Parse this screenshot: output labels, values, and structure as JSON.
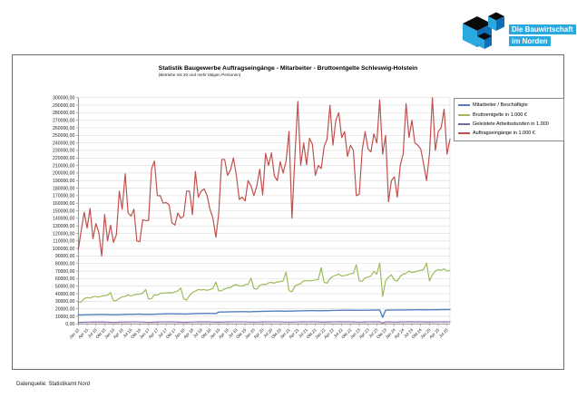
{
  "logo": {
    "line1": "Die Bauwirtschaft",
    "line2": "im Norden",
    "text_bg": "#29a9e0",
    "cube_top": "#0a0a0a",
    "cube_left": "#29a9e0",
    "cube_right": "#0e6fb8"
  },
  "footer": {
    "source": "Datenquelle: Statistikamt Nord"
  },
  "chart_data": {
    "type": "line",
    "title": "Statistik Baugewerbe Auftragseingänge - Mitarbeiter - Bruttoentgelte Schleswig-Holstein",
    "subtitle": "(Betriebe mit 20 und mehr tätigen Personen)",
    "xlabel": "",
    "ylabel": "",
    "ylim": [
      0,
      300000
    ],
    "ytick_step": 10000,
    "ytick_suffix": ",00",
    "grid": "horizontal",
    "legend_position": "right-top",
    "x_unit": "month",
    "x_range": "Jan 2015 – Aug 2025",
    "tick_every": 3,
    "tick_labels": [
      "Jan 15",
      "Apr 15",
      "Jul 15",
      "Okt 15",
      "Jan 16",
      "Apr 16",
      "Jul 16",
      "Okt 16",
      "Jan 17",
      "Apr 17",
      "Jul 17",
      "Okt 17",
      "Jan 18",
      "Apr 18",
      "Jul 18",
      "Okt 18",
      "Jan 19",
      "Apr 19",
      "Jul 19",
      "Okt 19",
      "Jan 20",
      "Apr 20",
      "Jul 20",
      "Okt 20",
      "Jan 21",
      "Apr 21",
      "Jul 21",
      "Okt 21",
      "Jan 22",
      "Apr 22",
      "Jul 22",
      "Okt 22",
      "Jan 23",
      "Apr 23",
      "Jul 23",
      "Okt 23",
      "Jan 24",
      "Apr 24",
      "Jul 24",
      "Okt 24",
      "Jan 25",
      "Apr 25",
      "Jul 25"
    ],
    "series": [
      {
        "id": "mitarbeiter",
        "name": "Mitarbeiter / Beschäftigte",
        "color": "#4f81bd",
        "values": [
          12000,
          11900,
          12000,
          12100,
          12200,
          12300,
          12300,
          12400,
          12400,
          12400,
          12300,
          12200,
          12200,
          12100,
          12300,
          12500,
          12600,
          12700,
          12800,
          12800,
          12900,
          12900,
          12800,
          12700,
          12600,
          12600,
          12800,
          13000,
          13100,
          13200,
          13300,
          13300,
          13400,
          13400,
          13300,
          13200,
          13100,
          13100,
          13300,
          13500,
          13600,
          13700,
          13800,
          13800,
          13900,
          13900,
          13800,
          13700,
          15600,
          15700,
          15800,
          15900,
          16000,
          16100,
          16100,
          16200,
          16200,
          16200,
          16100,
          16000,
          16300,
          16400,
          16500,
          16600,
          16700,
          16800,
          16800,
          16900,
          16900,
          16900,
          16800,
          16800,
          16900,
          17000,
          17100,
          17200,
          17300,
          17400,
          17400,
          17500,
          17500,
          17500,
          17400,
          17400,
          17500,
          17600,
          17700,
          17800,
          17900,
          18000,
          18000,
          18100,
          18100,
          18100,
          18000,
          18000,
          18000,
          18100,
          18200,
          18200,
          18300,
          18300,
          18300,
          18400,
          8600,
          18200,
          18300,
          18300,
          18300,
          18400,
          18400,
          18500,
          18500,
          18600,
          18600,
          18600,
          18700,
          18700,
          18600,
          18600,
          18600,
          18700,
          18800,
          18800,
          18900,
          18900,
          18900,
          19000
        ]
      },
      {
        "id": "bruttoentgelte",
        "name": "Bruttoentgelte in 1.000 €",
        "color": "#9bbb59",
        "values": [
          28500,
          29000,
          33500,
          35000,
          34000,
          36000,
          36500,
          35500,
          37000,
          37500,
          38000,
          41500,
          30500,
          31000,
          33500,
          36000,
          36500,
          38500,
          37000,
          38500,
          39000,
          39500,
          41000,
          45500,
          33000,
          33500,
          38500,
          38000,
          40500,
          41000,
          41000,
          41500,
          41000,
          42500,
          43500,
          47500,
          33500,
          31500,
          37500,
          41500,
          43500,
          45500,
          45000,
          45500,
          44500,
          45500,
          47000,
          55500,
          43500,
          44000,
          46500,
          47500,
          48000,
          51000,
          52000,
          50500,
          50000,
          52000,
          52500,
          60500,
          47000,
          46000,
          51000,
          52500,
          52000,
          54500,
          55000,
          54000,
          55500,
          56000,
          57000,
          68500,
          44000,
          42500,
          50000,
          52000,
          53500,
          57000,
          57500,
          57000,
          57500,
          58000,
          59000,
          74500,
          55000,
          54000,
          60000,
          63000,
          64500,
          66000,
          63500,
          64000,
          65000,
          66500,
          67000,
          78500,
          57000,
          56500,
          61000,
          62000,
          63500,
          69500,
          66000,
          80500,
          36500,
          57000,
          62000,
          65000,
          58000,
          57000,
          63000,
          66000,
          67000,
          70000,
          68000,
          69000,
          70000,
          71000,
          72000,
          80500,
          57000,
          65000,
          70000,
          72000,
          71000,
          73000,
          70000,
          71000
        ]
      },
      {
        "id": "arbeitsstunden",
        "name": "Geleistete Arbeitsstunden in 1.000",
        "color": "#8064a2",
        "values": [
          2000,
          2050,
          2250,
          2350,
          2400,
          2450,
          2500,
          2450,
          2500,
          2450,
          2350,
          2150,
          2050,
          2100,
          2300,
          2400,
          2450,
          2500,
          2550,
          2500,
          2550,
          2500,
          2400,
          2200,
          2100,
          2100,
          2350,
          2450,
          2500,
          2550,
          2550,
          2550,
          2600,
          2550,
          2450,
          2250,
          2150,
          2150,
          2400,
          2500,
          2550,
          2600,
          2600,
          2600,
          2650,
          2600,
          2500,
          2300,
          2300,
          2350,
          2500,
          2600,
          2650,
          2700,
          2700,
          2650,
          2700,
          2650,
          2550,
          2350,
          2350,
          2400,
          2550,
          2600,
          2650,
          2700,
          2700,
          2650,
          2700,
          2650,
          2550,
          2400,
          2400,
          2400,
          2550,
          2650,
          2700,
          2750,
          2700,
          2700,
          2750,
          2700,
          2600,
          2450,
          2450,
          2450,
          2600,
          2650,
          2700,
          2750,
          2750,
          2700,
          2750,
          2700,
          2600,
          2450,
          2400,
          2450,
          2600,
          2650,
          2700,
          2750,
          2700,
          2750,
          1200,
          2600,
          2650,
          2500,
          2400,
          2450,
          2600,
          2650,
          2700,
          2750,
          2750,
          2700,
          2750,
          2700,
          2600,
          2450,
          2450,
          2500,
          2650,
          2700,
          2700,
          2750,
          2700,
          2700
        ]
      },
      {
        "id": "auftragseingaenge",
        "name": "Auftragseingänge in 1.000 €",
        "color": "#c0504d",
        "values": [
          99000,
          124000,
          148000,
          127000,
          153000,
          113000,
          133000,
          121000,
          90000,
          145000,
          110000,
          131000,
          108000,
          118000,
          176000,
          152000,
          199000,
          147000,
          143000,
          152000,
          110000,
          109000,
          138000,
          137000,
          137000,
          205000,
          216000,
          170000,
          170000,
          160000,
          161000,
          158000,
          134000,
          131000,
          147000,
          140000,
          143000,
          176000,
          176000,
          145000,
          202000,
          168000,
          176000,
          179000,
          170000,
          152000,
          140000,
          115000,
          147000,
          218000,
          218000,
          197000,
          204000,
          220000,
          197000,
          165000,
          168000,
          163000,
          190000,
          183000,
          170000,
          183000,
          205000,
          171000,
          226000,
          210000,
          227000,
          196000,
          190000,
          215000,
          200000,
          216000,
          255000,
          140000,
          220000,
          295000,
          210000,
          240000,
          211000,
          246000,
          238000,
          197000,
          210000,
          206000,
          235000,
          245000,
          290000,
          237000,
          270000,
          280000,
          247000,
          255000,
          222000,
          237000,
          230000,
          170000,
          172000,
          230000,
          255000,
          232000,
          228000,
          252000,
          240000,
          297000,
          225000,
          250000,
          162000,
          190000,
          195000,
          168000,
          210000,
          225000,
          292000,
          247000,
          270000,
          240000,
          237000,
          232000,
          212000,
          190000,
          225000,
          300000,
          230000,
          255000,
          260000,
          285000,
          225000,
          245000
        ]
      }
    ]
  }
}
